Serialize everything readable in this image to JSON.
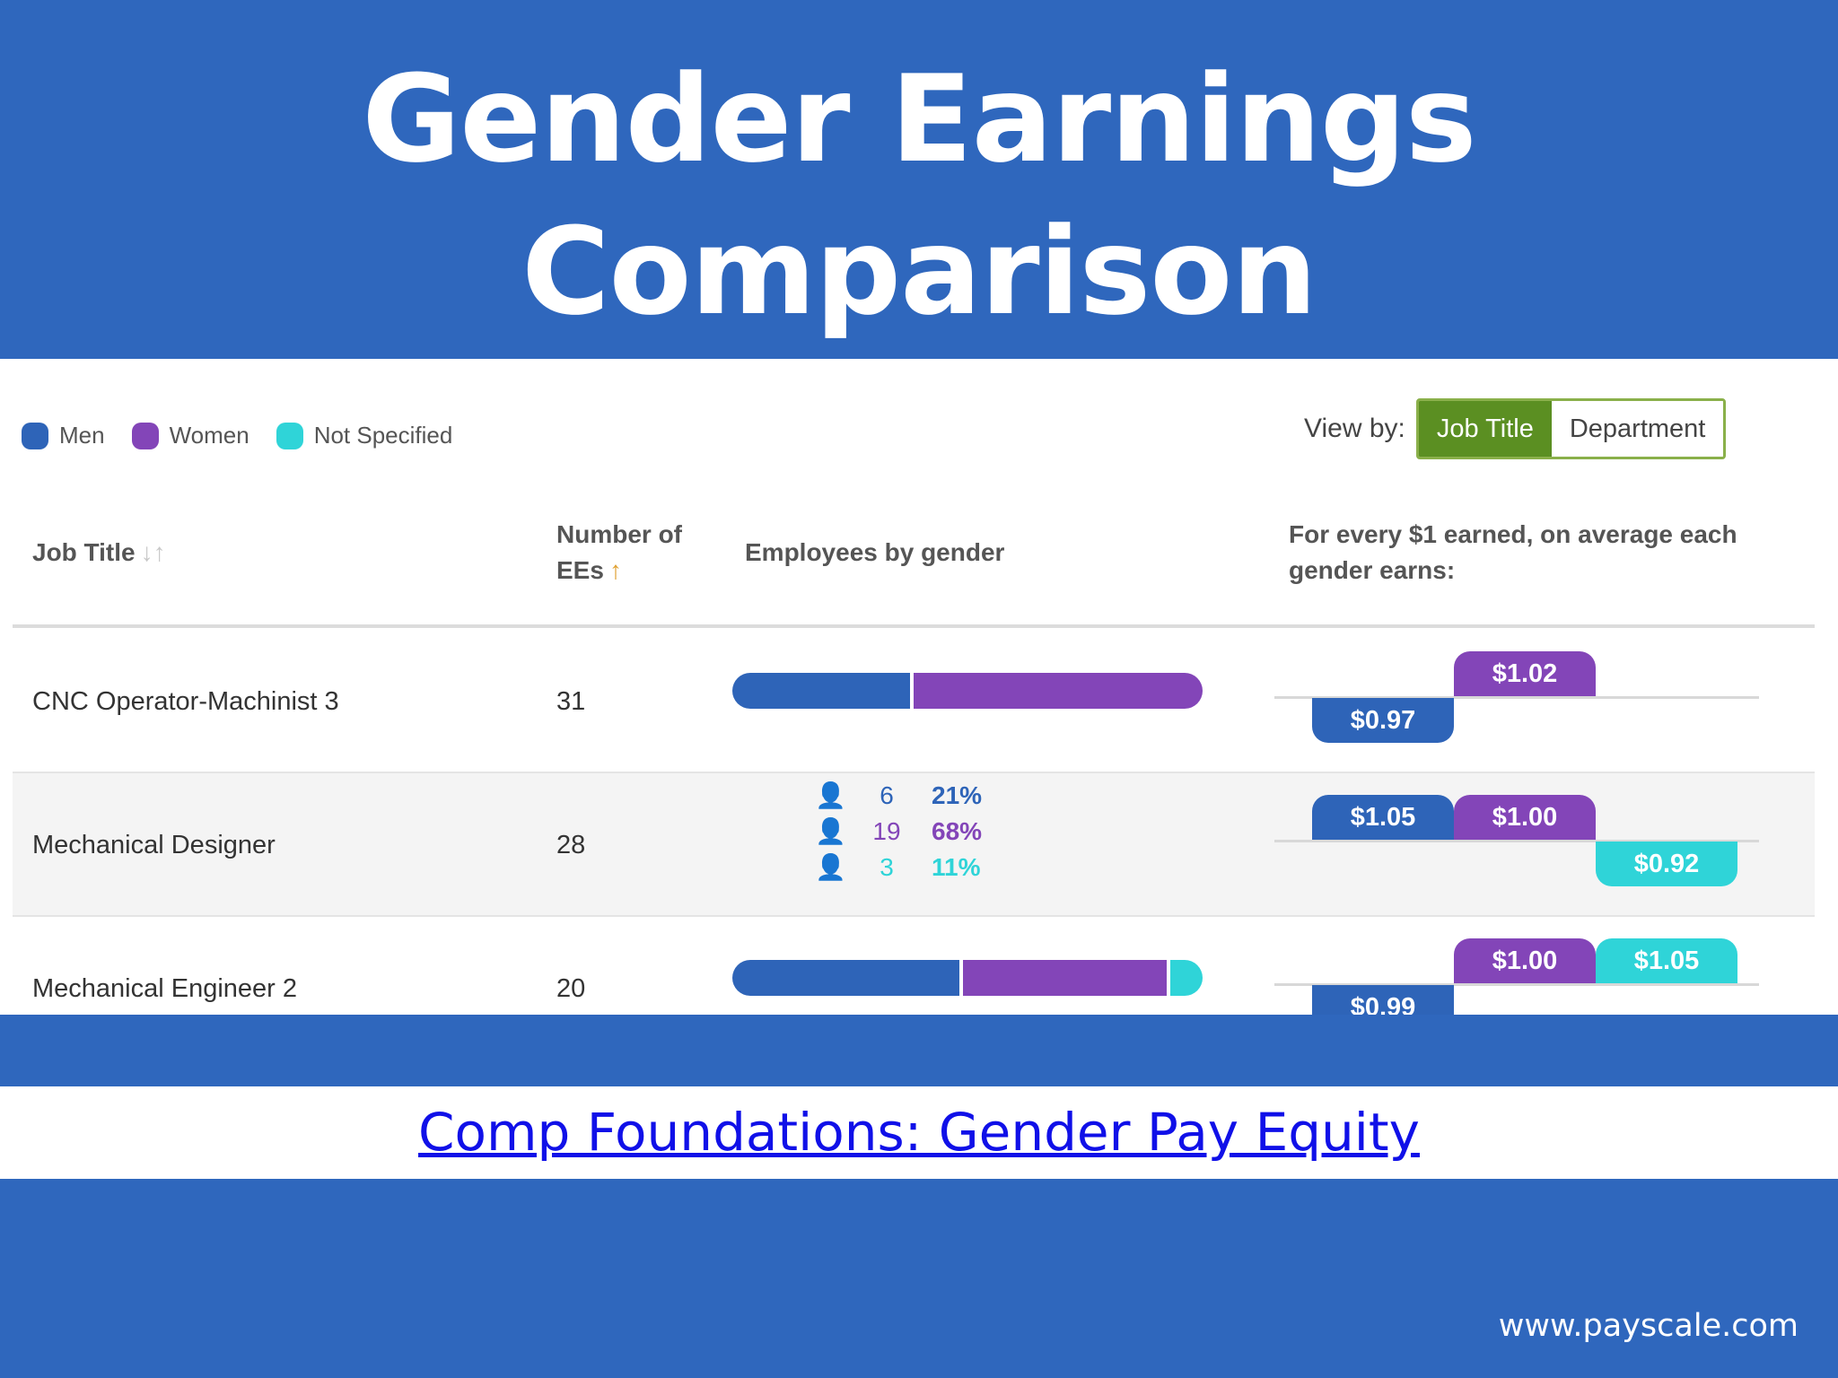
{
  "slide": {
    "title": "Gender Earnings Comparison",
    "link_text": "Comp Foundations: Gender Pay Equity",
    "footer_url": "www.payscale.com"
  },
  "colors": {
    "men": "#2e64b8",
    "women": "#8345b8",
    "not_specified": "#2fd4d8"
  },
  "legend": [
    {
      "label": "Men",
      "key": "men"
    },
    {
      "label": "Women",
      "key": "women"
    },
    {
      "label": "Not Specified",
      "key": "not_specified"
    }
  ],
  "view_by": {
    "label": "View by:",
    "options": [
      "Job Title",
      "Department"
    ],
    "selected": "Job Title"
  },
  "table": {
    "headers": {
      "job_title": "Job Title",
      "num_ees_line1": "Number of",
      "num_ees_line2": "EEs",
      "employees_by_gender": "Employees by gender",
      "pay_line1": "For every $1 earned, on average each",
      "pay_line2": "gender earns:"
    },
    "rows": [
      {
        "job_title": "CNC Operator-Machinist 3",
        "num_ees": "31",
        "gender_share": {
          "men": 0.38,
          "women": 0.62,
          "not_specified": 0
        },
        "pay": [
          {
            "key": "men",
            "label": "$0.97",
            "value": 0.97
          },
          {
            "key": "women",
            "label": "$1.02",
            "value": 1.02
          }
        ]
      },
      {
        "job_title": "Mechanical Designer",
        "num_ees": "28",
        "breakdown": [
          {
            "key": "men",
            "count": "6",
            "pct": "21%"
          },
          {
            "key": "women",
            "count": "19",
            "pct": "68%"
          },
          {
            "key": "not_specified",
            "count": "3",
            "pct": "11%"
          }
        ],
        "pay": [
          {
            "key": "men",
            "label": "$1.05",
            "value": 1.05
          },
          {
            "key": "women",
            "label": "$1.00",
            "value": 1.0
          },
          {
            "key": "not_specified",
            "label": "$0.92",
            "value": 0.92
          }
        ]
      },
      {
        "job_title": "Mechanical Engineer 2",
        "num_ees": "20",
        "gender_share": {
          "men": 0.49,
          "women": 0.44,
          "not_specified": 0.07
        },
        "pay": [
          {
            "key": "men",
            "label": "$0.99",
            "value": 0.99
          },
          {
            "key": "women",
            "label": "$1.00",
            "value": 1.0
          },
          {
            "key": "not_specified",
            "label": "$1.05",
            "value": 1.05
          }
        ]
      }
    ]
  }
}
